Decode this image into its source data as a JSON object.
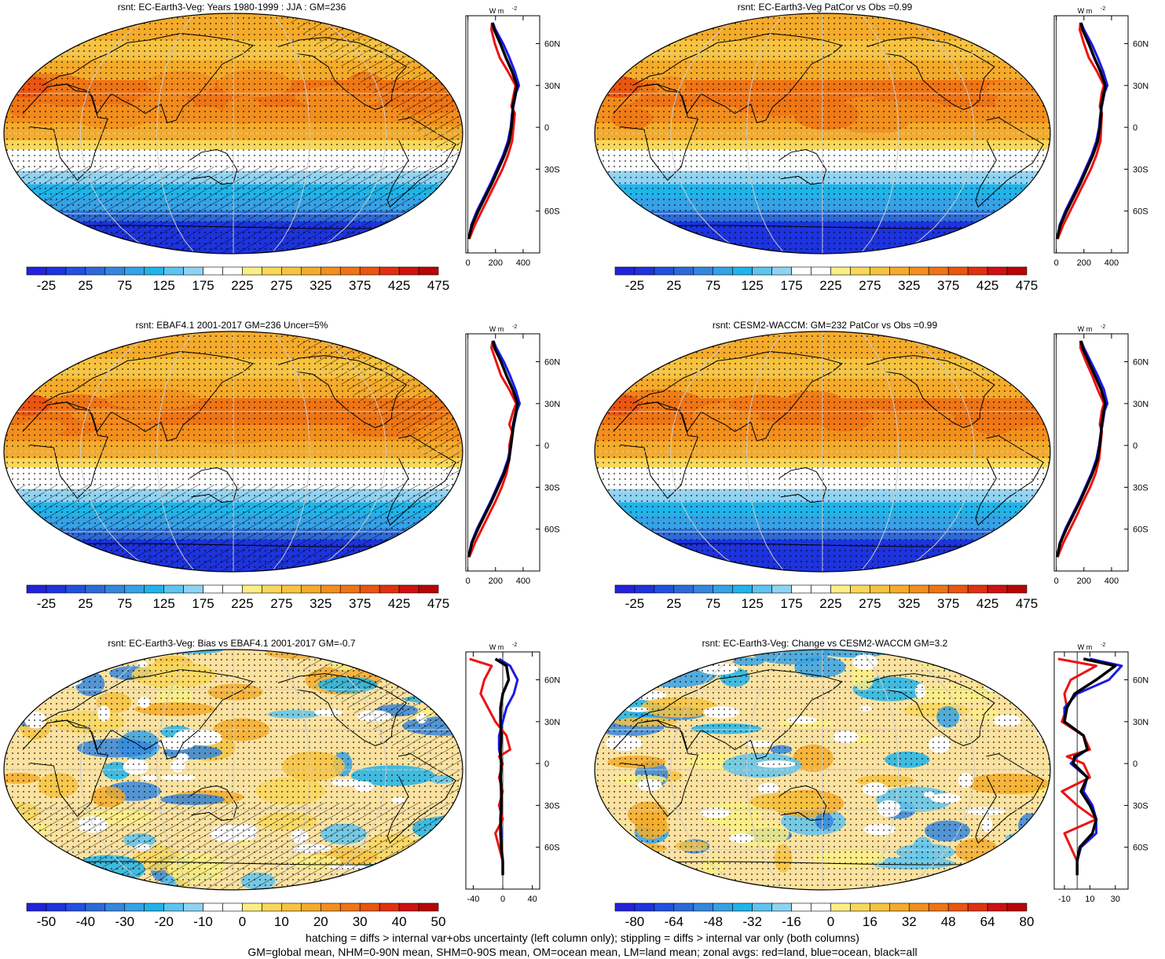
{
  "footer": {
    "line1": "hatching = diffs > internal var+obs uncertainty (left column only); stippling = diffs > internal var only (both columns)",
    "line2": "GM=global mean, NHM=0-90N mean, SHM=0-90S mean, OM=ocean mean, LM=land mean; zonal avgs: red=land, blue=ocean, black=all"
  },
  "colors": {
    "land": "#ee1111",
    "ocean": "#1a1ae6",
    "all": "#000000",
    "palette_full": [
      "#2222dd",
      "#1d33dd",
      "#2250e0",
      "#2c6ad8",
      "#3587dd",
      "#36a2e6",
      "#1fb4ea",
      "#5ec4ef",
      "#8fd3f3",
      "#ffffff",
      "#ffffff",
      "#fbee85",
      "#f9d75a",
      "#f7c33f",
      "#f5ab2a",
      "#f28f1d",
      "#ef7414",
      "#ea5510",
      "#e2300f",
      "#d11010",
      "#b80505"
    ]
  },
  "panels": [
    {
      "title": "rsnt: EC-Earth3-Veg: Years 1980-1999 : JJA : GM=236",
      "unit_label": "W m",
      "unit_sup": "-2",
      "colorbar_labels": [
        "-25",
        "25",
        "75",
        "125",
        "175",
        "225",
        "275",
        "325",
        "375",
        "425",
        "475"
      ],
      "chart_data": {
        "type": "line",
        "title": "rsnt: EC-Earth3-Veg: Years 1980-1999 : JJA : GM=236",
        "x_ticks": [
          "0",
          "200",
          "400"
        ],
        "xlim": [
          -15,
          520
        ],
        "y_ticks": [
          "60N",
          "30N",
          "0",
          "30S",
          "60S"
        ],
        "ylim": [
          -90,
          80
        ],
        "series": [
          {
            "role": "land",
            "x": [
              175,
              170,
              195,
              230,
              290,
              345,
              335,
              315,
              340,
              330,
              320,
              290,
              250,
              200,
              150,
              100,
              50,
              10
            ],
            "y": [
              75,
              70,
              60,
              50,
              40,
              30,
              25,
              15,
              10,
              0,
              -10,
              -20,
              -30,
              -40,
              -50,
              -60,
              -70,
              -80
            ]
          },
          {
            "role": "ocean",
            "x": [
              180,
              200,
              255,
              300,
              340,
              370,
              350,
              330,
              320,
              310,
              290,
              255,
              210,
              165,
              115,
              65,
              25,
              5
            ],
            "y": [
              75,
              70,
              60,
              50,
              40,
              30,
              25,
              15,
              10,
              0,
              -10,
              -20,
              -30,
              -40,
              -50,
              -60,
              -70,
              -80
            ]
          },
          {
            "role": "all",
            "x": [
              178,
              190,
              235,
              275,
              320,
              355,
              345,
              325,
              325,
              315,
              300,
              265,
              220,
              175,
              125,
              75,
              30,
              5
            ],
            "y": [
              75,
              70,
              60,
              50,
              40,
              30,
              25,
              15,
              10,
              0,
              -10,
              -20,
              -30,
              -40,
              -50,
              -60,
              -70,
              -80
            ]
          }
        ]
      }
    },
    {
      "title": "rsnt: EC-Earth3-Veg PatCor vs Obs =0.99",
      "unit_label": "W m",
      "unit_sup": "-2",
      "colorbar_labels": [
        "-25",
        "25",
        "75",
        "125",
        "175",
        "225",
        "275",
        "325",
        "375",
        "425",
        "475"
      ],
      "chart_data": {
        "type": "line",
        "title": "rsnt: EC-Earth3-Veg PatCor vs Obs =0.99",
        "x_ticks": [
          "0",
          "200",
          "400"
        ],
        "xlim": [
          -15,
          520
        ],
        "y_ticks": [
          "60N",
          "30N",
          "0",
          "30S",
          "60S"
        ],
        "ylim": [
          -90,
          80
        ],
        "series": [
          {
            "role": "land",
            "x": [
              175,
              170,
              200,
              235,
              295,
              345,
              330,
              315,
              330,
              325,
              320,
              290,
              250,
              200,
              150,
              100,
              50,
              10
            ],
            "y": [
              75,
              70,
              60,
              50,
              40,
              30,
              25,
              15,
              10,
              0,
              -10,
              -20,
              -30,
              -40,
              -50,
              -60,
              -70,
              -80
            ]
          },
          {
            "role": "ocean",
            "x": [
              180,
              200,
              255,
              300,
              340,
              370,
              350,
              330,
              320,
              310,
              290,
              255,
              210,
              165,
              115,
              65,
              25,
              5
            ],
            "y": [
              75,
              70,
              60,
              50,
              40,
              30,
              25,
              15,
              10,
              0,
              -10,
              -20,
              -30,
              -40,
              -50,
              -60,
              -70,
              -80
            ]
          },
          {
            "role": "all",
            "x": [
              178,
              190,
              235,
              275,
              320,
              355,
              345,
              325,
              325,
              315,
              300,
              265,
              220,
              175,
              125,
              75,
              30,
              5
            ],
            "y": [
              75,
              70,
              60,
              50,
              40,
              30,
              25,
              15,
              10,
              0,
              -10,
              -20,
              -30,
              -40,
              -50,
              -60,
              -70,
              -80
            ]
          }
        ]
      }
    },
    {
      "title": "rsnt: EBAF4.1 2001-2017 GM=236 Uncer=5%",
      "unit_label": "W m",
      "unit_sup": "-2",
      "colorbar_labels": [
        "-25",
        "25",
        "75",
        "125",
        "175",
        "225",
        "275",
        "325",
        "375",
        "425",
        "475"
      ],
      "chart_data": {
        "type": "line",
        "title": "rsnt: EBAF4.1 2001-2017 GM=236 Uncer=5%",
        "x_ticks": [
          "0",
          "200",
          "400"
        ],
        "xlim": [
          -15,
          520
        ],
        "y_ticks": [
          "60N",
          "30N",
          "0",
          "30S",
          "60S"
        ],
        "ylim": [
          -90,
          80
        ],
        "series": [
          {
            "role": "land",
            "x": [
              180,
              170,
              205,
              240,
              300,
              350,
              330,
              300,
              320,
              300,
              300,
              280,
              245,
              200,
              150,
              100,
              50,
              10
            ],
            "y": [
              75,
              70,
              60,
              50,
              40,
              30,
              25,
              15,
              10,
              0,
              -10,
              -20,
              -30,
              -40,
              -50,
              -60,
              -70,
              -80
            ]
          },
          {
            "role": "ocean",
            "x": [
              185,
              205,
              260,
              305,
              345,
              375,
              355,
              335,
              325,
              310,
              290,
              255,
              210,
              165,
              115,
              65,
              25,
              5
            ],
            "y": [
              75,
              70,
              60,
              50,
              40,
              30,
              25,
              15,
              10,
              0,
              -10,
              -20,
              -30,
              -40,
              -50,
              -60,
              -70,
              -80
            ]
          },
          {
            "role": "all",
            "x": [
              182,
              192,
              240,
              280,
              325,
              360,
              350,
              328,
              325,
              312,
              298,
              262,
              218,
              172,
              122,
              72,
              28,
              5
            ],
            "y": [
              75,
              70,
              60,
              50,
              40,
              30,
              25,
              15,
              10,
              0,
              -10,
              -20,
              -30,
              -40,
              -50,
              -60,
              -70,
              -80
            ]
          }
        ]
      }
    },
    {
      "title": "rsnt: CESM2-WACCM: GM=232 PatCor vs Obs =0.99",
      "unit_label": "W m",
      "unit_sup": "-2",
      "colorbar_labels": [
        "-25",
        "25",
        "75",
        "125",
        "175",
        "225",
        "275",
        "325",
        "375",
        "425",
        "475"
      ],
      "chart_data": {
        "type": "line",
        "title": "rsnt: CESM2-WACCM: GM=232 PatCor vs Obs =0.99",
        "x_ticks": [
          "0",
          "200",
          "400"
        ],
        "xlim": [
          -15,
          520
        ],
        "y_ticks": [
          "60N",
          "30N",
          "0",
          "30S",
          "60S"
        ],
        "ylim": [
          -90,
          80
        ],
        "series": [
          {
            "role": "land",
            "x": [
              175,
              175,
              215,
              260,
              300,
              345,
              330,
              315,
              330,
              320,
              310,
              285,
              245,
              195,
              150,
              100,
              50,
              10
            ],
            "y": [
              75,
              70,
              60,
              50,
              40,
              30,
              25,
              15,
              10,
              0,
              -10,
              -20,
              -30,
              -40,
              -50,
              -60,
              -70,
              -80
            ]
          },
          {
            "role": "ocean",
            "x": [
              180,
              200,
              250,
              300,
              345,
              370,
              350,
              335,
              325,
              310,
              290,
              255,
              210,
              165,
              115,
              65,
              25,
              5
            ],
            "y": [
              75,
              70,
              60,
              50,
              40,
              30,
              25,
              15,
              10,
              0,
              -10,
              -20,
              -30,
              -40,
              -50,
              -60,
              -70,
              -80
            ]
          },
          {
            "role": "all",
            "x": [
              178,
              190,
              235,
              280,
              325,
              355,
              345,
              328,
              325,
              314,
              298,
              262,
              218,
              172,
              122,
              72,
              28,
              5
            ],
            "y": [
              75,
              70,
              60,
              50,
              40,
              30,
              25,
              15,
              10,
              0,
              -10,
              -20,
              -30,
              -40,
              -50,
              -60,
              -70,
              -80
            ]
          }
        ]
      }
    },
    {
      "title": "rsnt: EC-Earth3-Veg: Bias vs EBAF4.1 2001-2017 GM=-0.7",
      "unit_label": "W m",
      "unit_sup": "-2",
      "colorbar_labels": [
        "-50",
        "-40",
        "-30",
        "-20",
        "-10",
        "0",
        "10",
        "20",
        "30",
        "40",
        "50"
      ],
      "chart_data": {
        "type": "line",
        "title": "rsnt: EC-Earth3-Veg: Bias vs EBAF4.1 2001-2017 GM=-0.7",
        "x_ticks": [
          "-40",
          "0",
          "40"
        ],
        "xlim": [
          -50,
          50
        ],
        "y_ticks": [
          "60N",
          "30N",
          "0",
          "30S",
          "60S"
        ],
        "ylim": [
          -90,
          80
        ],
        "series": [
          {
            "role": "land",
            "x": [
              -45,
              -15,
              -25,
              -30,
              -20,
              -10,
              5,
              10,
              -5,
              0,
              -5,
              0,
              -5,
              0,
              -10,
              -5,
              0,
              0
            ],
            "y": [
              75,
              70,
              60,
              50,
              40,
              30,
              20,
              10,
              5,
              0,
              -10,
              -20,
              -30,
              -40,
              -50,
              -60,
              -70,
              -80
            ]
          },
          {
            "role": "ocean",
            "x": [
              -5,
              10,
              20,
              15,
              5,
              0,
              -5,
              -5,
              -3,
              -2,
              -3,
              -2,
              -2,
              -3,
              -2,
              -2,
              0,
              0
            ],
            "y": [
              75,
              70,
              60,
              50,
              40,
              30,
              20,
              10,
              5,
              0,
              -10,
              -20,
              -30,
              -40,
              -50,
              -60,
              -70,
              -80
            ]
          },
          {
            "role": "all",
            "x": [
              -10,
              5,
              8,
              0,
              -3,
              -3,
              -2,
              -3,
              -3,
              -2,
              -3,
              -2,
              -2,
              -3,
              -3,
              -2,
              0,
              0
            ],
            "y": [
              75,
              70,
              60,
              50,
              40,
              30,
              20,
              10,
              5,
              0,
              -10,
              -20,
              -30,
              -40,
              -50,
              -60,
              -70,
              -80
            ]
          }
        ]
      }
    },
    {
      "title": "rsnt: EC-Earth3-Veg: Change vs CESM2-WACCM GM=3.2",
      "unit_label": "W m",
      "unit_sup": "-2",
      "colorbar_labels": [
        "-80",
        "-64",
        "-48",
        "-32",
        "-16",
        "0",
        "16",
        "32",
        "48",
        "64",
        "80"
      ],
      "chart_data": {
        "type": "line",
        "title": "rsnt: EC-Earth3-Veg: Change vs CESM2-WACCM GM=3.2",
        "x_ticks": [
          "-10",
          "10",
          "30"
        ],
        "xlim": [
          -18,
          40
        ],
        "y_ticks": [
          "60N",
          "30N",
          "0",
          "30S",
          "60S"
        ],
        "ylim": [
          -90,
          80
        ],
        "series": [
          {
            "role": "land",
            "x": [
              -15,
              15,
              -5,
              -10,
              -8,
              -12,
              5,
              10,
              -8,
              5,
              10,
              -12,
              0,
              15,
              -10,
              -5,
              0,
              0
            ],
            "y": [
              75,
              70,
              60,
              50,
              40,
              30,
              20,
              10,
              5,
              0,
              -10,
              -20,
              -30,
              -40,
              -50,
              -60,
              -70,
              -80
            ]
          },
          {
            "role": "ocean",
            "x": [
              10,
              35,
              25,
              0,
              -10,
              -10,
              5,
              8,
              0,
              -5,
              8,
              5,
              12,
              15,
              15,
              3,
              0,
              0
            ],
            "y": [
              75,
              70,
              60,
              50,
              40,
              30,
              20,
              10,
              5,
              0,
              -10,
              -20,
              -30,
              -40,
              -50,
              -60,
              -70,
              -80
            ]
          },
          {
            "role": "all",
            "x": [
              5,
              30,
              15,
              -2,
              -8,
              -10,
              5,
              8,
              -2,
              -3,
              8,
              3,
              10,
              15,
              12,
              2,
              0,
              0
            ],
            "y": [
              75,
              70,
              60,
              50,
              40,
              30,
              20,
              10,
              5,
              0,
              -10,
              -20,
              -30,
              -40,
              -50,
              -60,
              -70,
              -80
            ]
          }
        ]
      }
    }
  ]
}
